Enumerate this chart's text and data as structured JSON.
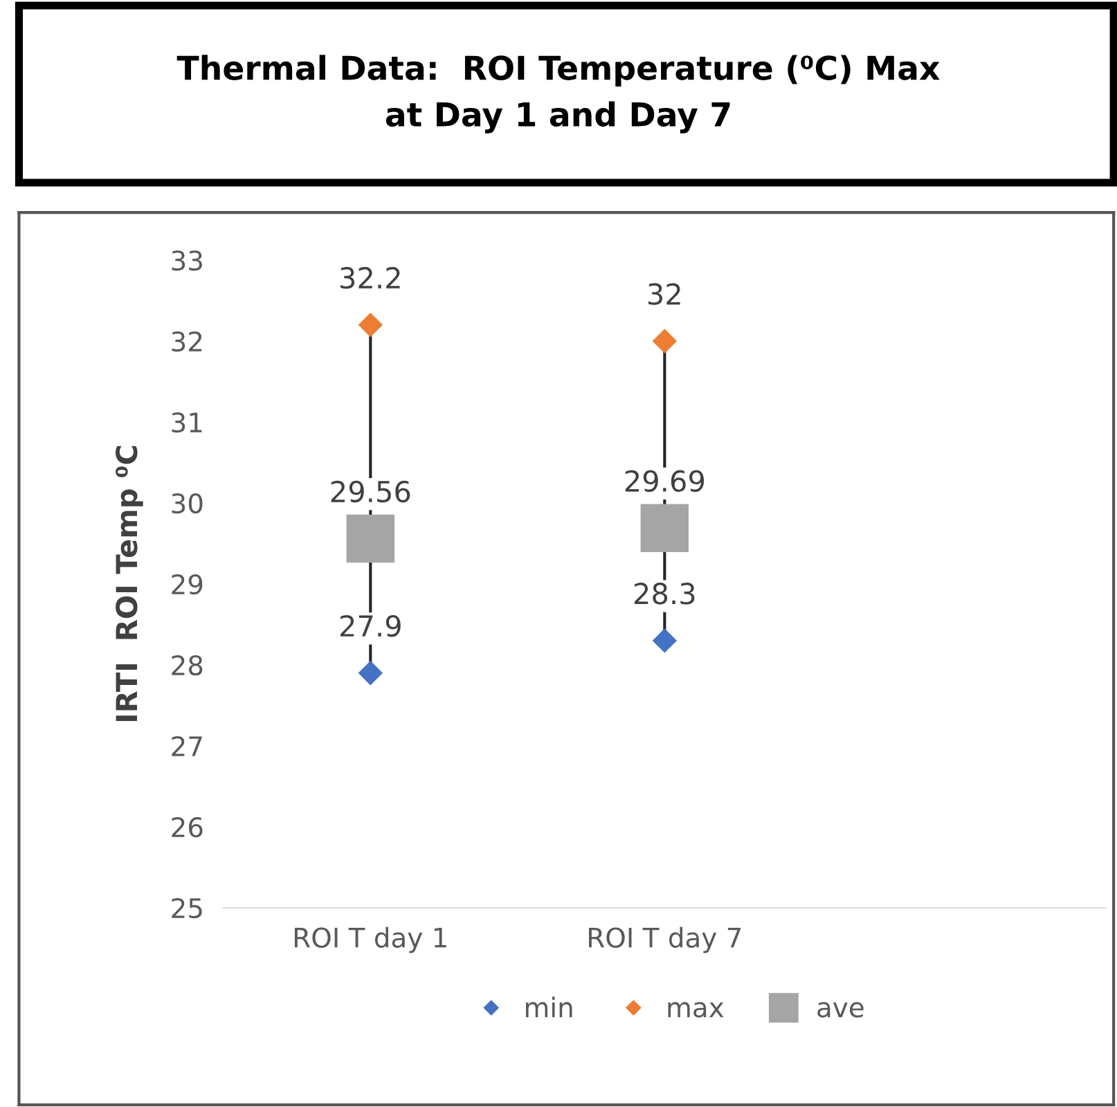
{
  "chart_data": {
    "type": "scatter",
    "title": "Thermal Data:  ROI Temperature (⁰C) Max\nat Day 1 and Day 7",
    "ylabel": "IRTI  ROI Temp ⁰C",
    "categories": [
      "ROI T day 1",
      "ROI T day 7",
      null
    ],
    "series": [
      {
        "name": "min",
        "color": "#4472c4",
        "marker": "diamond",
        "values": [
          27.9,
          28.3,
          null
        ]
      },
      {
        "name": "max",
        "color": "#ed7d31",
        "marker": "diamond",
        "values": [
          32.2,
          32,
          null
        ]
      },
      {
        "name": "ave",
        "color": "#a5a5a5",
        "marker": "square",
        "values": [
          29.56,
          29.69,
          null
        ]
      }
    ],
    "ylim": [
      25,
      33
    ],
    "yticks": [
      25,
      26,
      27,
      28,
      29,
      30,
      31,
      32,
      33
    ],
    "data_labels": true,
    "grid": false,
    "legend": "bottom"
  }
}
